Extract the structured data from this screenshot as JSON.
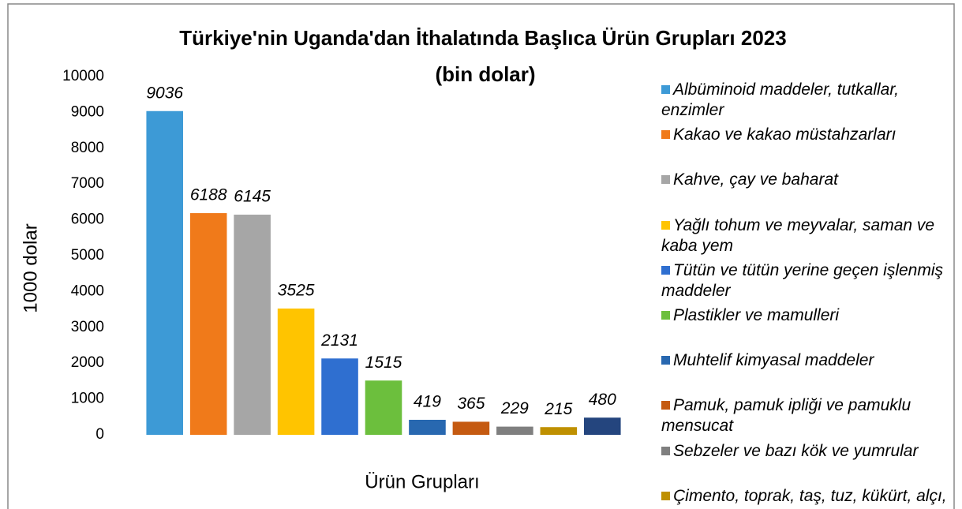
{
  "chart_data": {
    "type": "bar",
    "title": "Türkiye'nin Uganda'dan İthalatında Başlıca Ürün Grupları 2023",
    "subtitle": "(bin dolar)",
    "x_label": "Ürün Grupları",
    "y_label": "1000 dolar",
    "categories": [
      "Albüminoid maddeler, tutkallar, enzimler",
      "Kakao ve kakao müstahzarları",
      "Kahve, çay ve baharat",
      "Yağlı tohum ve meyvalar, saman ve kaba yem",
      "Tütün ve tütün yerine geçen işlenmiş maddeler",
      "Plastikler ve mamulleri",
      "Muhtelif kimyasal maddeler",
      "Pamuk, pamuk ipliği ve pamuklu mensucat",
      "Sebzeler ve bazı kök ve yumrular",
      "Çimento, toprak, taş, tuz, kükürt, alçı, kireç",
      null
    ],
    "values": [
      9036,
      6188,
      6145,
      3525,
      2131,
      1515,
      419,
      365,
      229,
      215,
      480
    ],
    "colors": [
      "#3d9ad6",
      "#f07a1a",
      "#a6a6a6",
      "#ffc400",
      "#2f6fd0",
      "#6cbf3d",
      "#2868b0",
      "#c55a11",
      "#7f7f7f",
      "#bf9000",
      "#24457e"
    ],
    "ylim": [
      0,
      10000
    ],
    "yticks": [
      0,
      1000,
      2000,
      3000,
      4000,
      5000,
      6000,
      7000,
      8000,
      9000,
      10000
    ],
    "legend": "right"
  }
}
